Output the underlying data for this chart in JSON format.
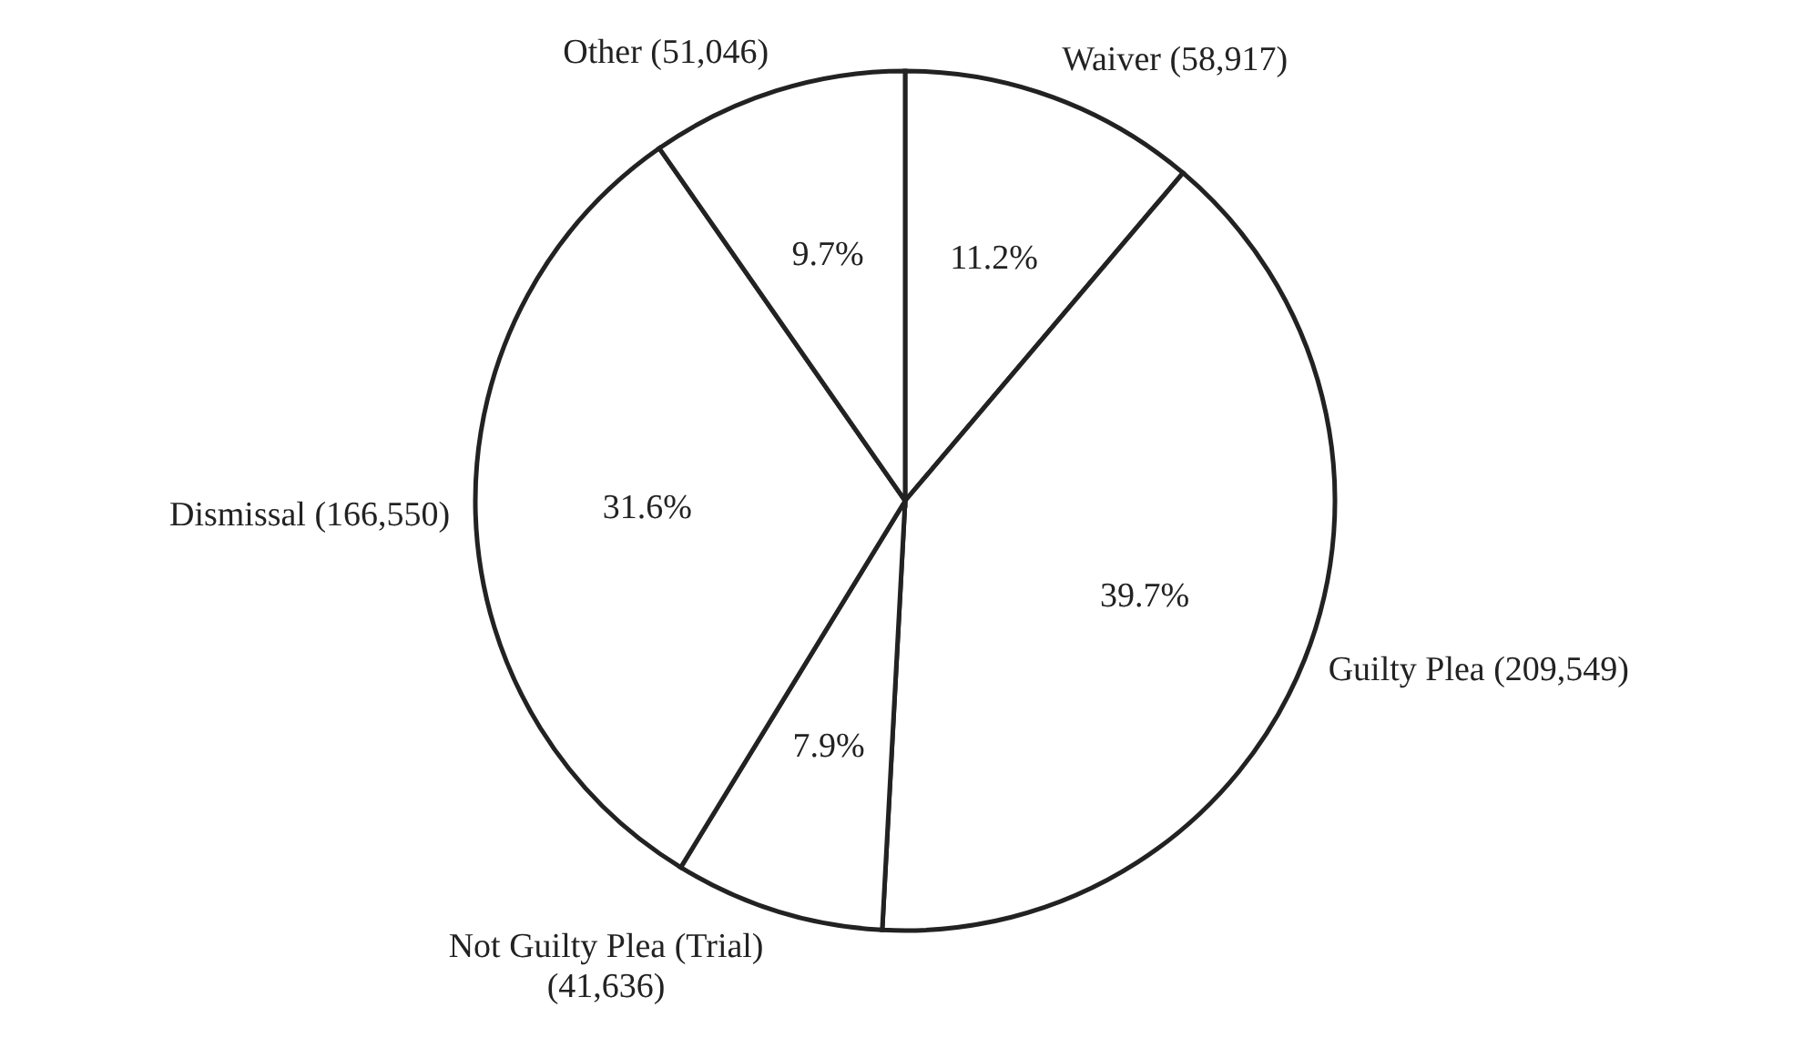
{
  "chart_data": {
    "type": "pie",
    "categories": [
      "Waiver (58,917)",
      "Guilty Plea (209,549)",
      "Not Guilty Plea (Trial) (41,636)",
      "Dismissal (166,550)",
      "Other (51,046)"
    ],
    "values": [
      11.2,
      39.7,
      7.9,
      31.6,
      9.7
    ],
    "value_labels": [
      "11.2%",
      "39.7%",
      "7.9%",
      "31.6%",
      "9.7%"
    ],
    "colors": [
      "#ffffff",
      "#ffffff",
      "#ffffff",
      "#ffffff",
      "#ffffff"
    ],
    "legend": false
  }
}
